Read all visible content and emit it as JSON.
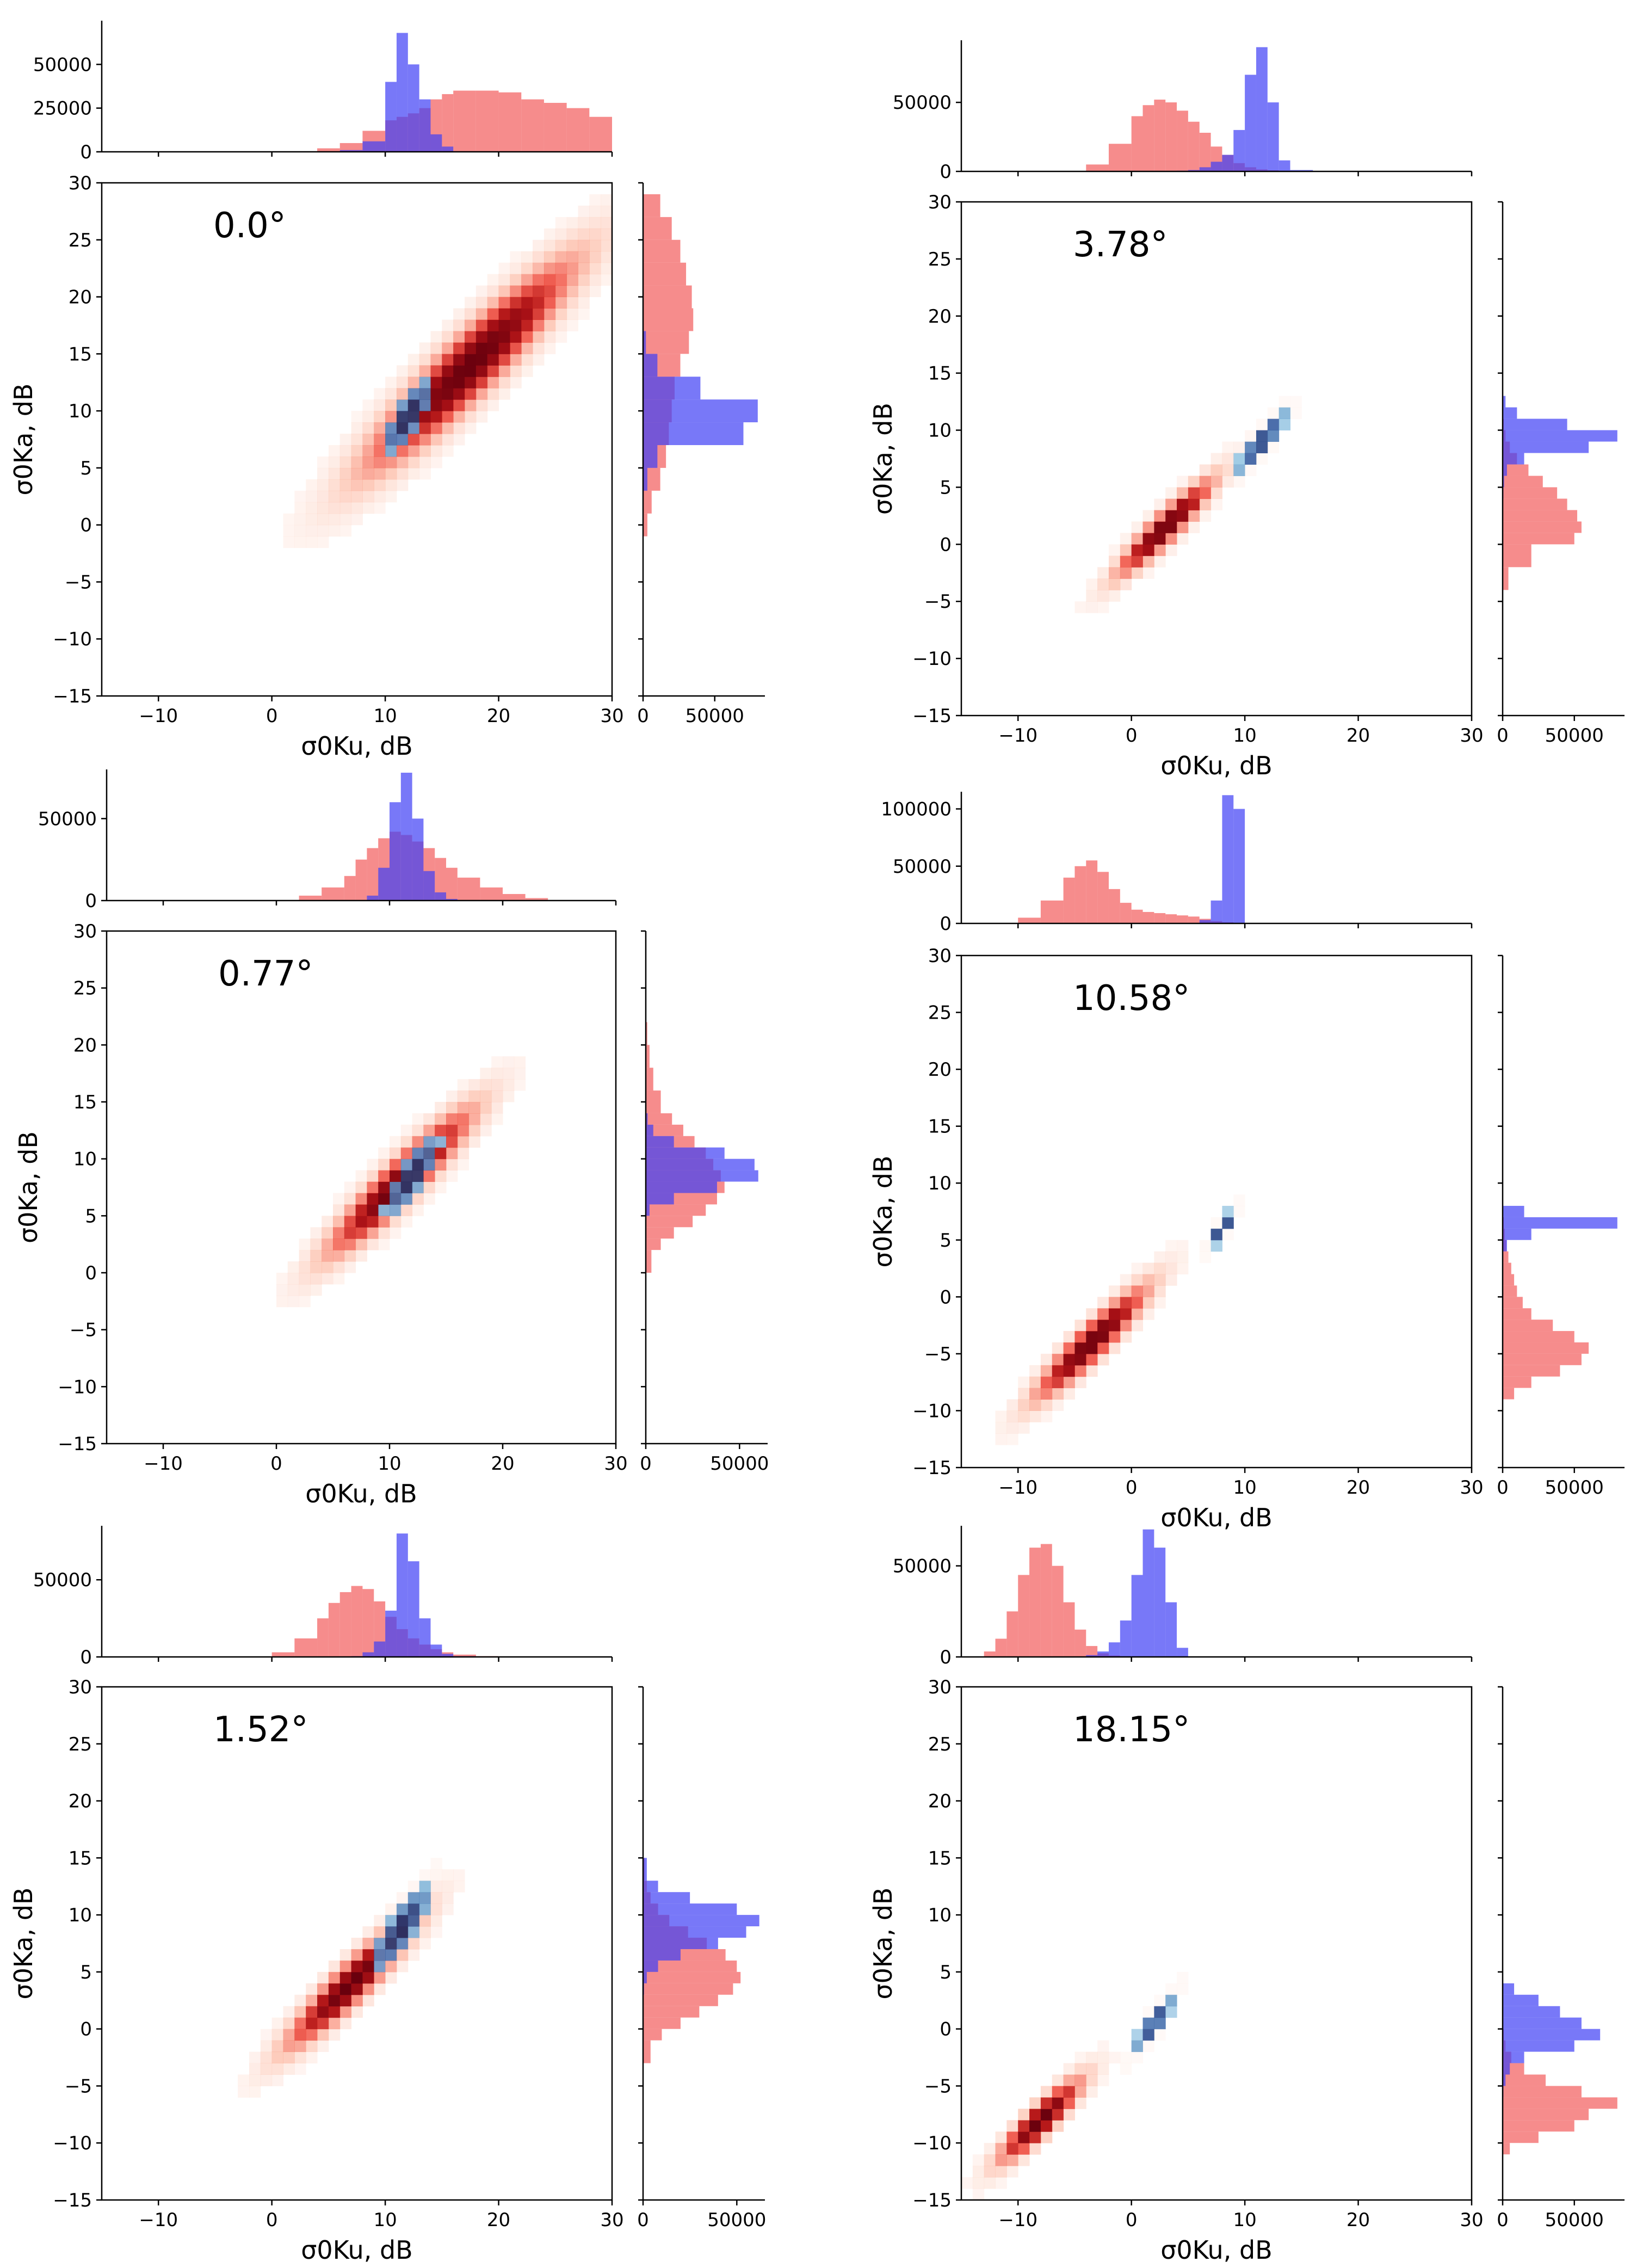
{
  "figure": {
    "colors": {
      "ku_ka_main": "#c8102e",
      "blue_hist": "#3f3ff5",
      "red_hist": "#f25b5b"
    },
    "hist_series": [
      "red",
      "blue"
    ]
  },
  "chart_data": [
    {
      "type": "heatmap",
      "angle_label": "0.0°",
      "xlabel": "σ0Ku, dB",
      "ylabel": "σ0Ka, dB",
      "xlim": [
        -15,
        30
      ],
      "ylim": [
        -15,
        30
      ],
      "xticks": [
        "−10",
        "0",
        "10",
        "20",
        "30"
      ],
      "yticks": [
        "−15",
        "−10",
        "−5",
        "0",
        "5",
        "10",
        "15",
        "20",
        "25",
        "30"
      ],
      "top_hist_ticks": [
        "0",
        "25000",
        "50000"
      ],
      "top_hist_max": 75000,
      "right_hist_ticks": [
        "0",
        "50000"
      ],
      "right_hist_max": 85000,
      "red_cluster": {
        "cx": 17.5,
        "cy": 14,
        "sx": 6.5,
        "sy": 6.5,
        "rho": 0.93
      },
      "blue_cluster": {
        "cx": 12,
        "cy": 9.5,
        "sx": 1.5,
        "sy": 2.2,
        "rho": 0.8
      },
      "top_hist": {
        "bins": [
          4,
          6,
          8,
          10,
          11,
          12,
          13,
          14,
          15,
          16,
          18,
          20,
          22,
          24,
          26,
          28,
          30
        ],
        "red": [
          2000,
          5000,
          12000,
          18000,
          20000,
          22000,
          25000,
          30000,
          33000,
          35000,
          35000,
          34000,
          30000,
          28000,
          25000,
          20000
        ],
        "blue": [
          0,
          1000,
          6000,
          40000,
          68000,
          50000,
          30000,
          10000,
          3000,
          0,
          0,
          0,
          0,
          0,
          0,
          0
        ]
      },
      "right_hist": {
        "bins": [
          -1,
          1,
          3,
          5,
          7,
          9,
          11,
          13,
          15,
          17,
          19,
          21,
          23,
          25,
          27,
          29
        ],
        "red": [
          3000,
          6000,
          12000,
          16000,
          18000,
          20000,
          22000,
          26000,
          32000,
          35000,
          34000,
          30000,
          26000,
          20000,
          12000
        ],
        "blue": [
          0,
          0,
          3000,
          10000,
          70000,
          80000,
          40000,
          10000,
          2000,
          0,
          0,
          0,
          0,
          0,
          0
        ]
      }
    },
    {
      "type": "heatmap",
      "angle_label": "3.78°",
      "xlabel": "σ0Ku, dB",
      "ylabel": "σ0Ka, dB",
      "xlim": [
        -15,
        30
      ],
      "ylim": [
        -15,
        30
      ],
      "xticks": [
        "−10",
        "0",
        "10",
        "20",
        "30"
      ],
      "yticks": [
        "−15",
        "−10",
        "−5",
        "0",
        "5",
        "10",
        "15",
        "20",
        "25",
        "30"
      ],
      "top_hist_ticks": [
        "0",
        "50000"
      ],
      "top_hist_max": 95000,
      "right_hist_ticks": [
        "0",
        "50000"
      ],
      "right_hist_max": 85000,
      "red_cluster": {
        "cx": 3,
        "cy": 1.5,
        "sx": 3,
        "sy": 3,
        "rho": 0.93
      },
      "blue_cluster": {
        "cx": 11.5,
        "cy": 9,
        "sx": 1.6,
        "sy": 2,
        "rho": 0.9
      },
      "top_hist": {
        "bins": [
          -4,
          -2,
          0,
          1,
          2,
          3,
          4,
          5,
          6,
          7,
          8,
          9,
          10,
          11,
          12,
          13,
          14,
          16
        ],
        "red": [
          5000,
          20000,
          40000,
          48000,
          52000,
          50000,
          44000,
          36000,
          28000,
          18000,
          12000,
          6000,
          3000,
          1500,
          800,
          300,
          100
        ],
        "blue": [
          0,
          0,
          0,
          0,
          0,
          0,
          500,
          1000,
          3000,
          7000,
          12000,
          30000,
          70000,
          90000,
          50000,
          8000,
          1000
        ]
      },
      "right_hist": {
        "bins": [
          -4,
          -2,
          0,
          1,
          2,
          3,
          4,
          5,
          6,
          7,
          8,
          9,
          10,
          11,
          12,
          13,
          14
        ],
        "red": [
          4000,
          20000,
          50000,
          55000,
          52000,
          45000,
          38000,
          28000,
          18000,
          10000,
          5000,
          2000,
          800,
          300,
          100,
          0
        ],
        "blue": [
          0,
          0,
          0,
          0,
          0,
          0,
          500,
          1000,
          3000,
          15000,
          60000,
          80000,
          45000,
          10000,
          2000,
          0
        ]
      }
    },
    {
      "type": "heatmap",
      "angle_label": "0.77°",
      "xlabel": "σ0Ku, dB",
      "ylabel": "σ0Ka, dB",
      "xlim": [
        -15,
        30
      ],
      "ylim": [
        -15,
        30
      ],
      "xticks": [
        "−10",
        "0",
        "10",
        "20",
        "30"
      ],
      "yticks": [
        "−15",
        "−10",
        "−5",
        "0",
        "5",
        "10",
        "15",
        "20",
        "25",
        "30"
      ],
      "top_hist_ticks": [
        "0",
        "50000"
      ],
      "top_hist_max": 80000,
      "right_hist_ticks": [
        "0",
        "50000"
      ],
      "right_hist_max": 65000,
      "red_cluster": {
        "cx": 11,
        "cy": 8,
        "sx": 4.5,
        "sy": 4.5,
        "rho": 0.93
      },
      "blue_cluster": {
        "cx": 12,
        "cy": 8.5,
        "sx": 1.6,
        "sy": 2.3,
        "rho": 0.85
      },
      "top_hist": {
        "bins": [
          2,
          4,
          6,
          7,
          8,
          9,
          10,
          11,
          12,
          13,
          14,
          15,
          16,
          18,
          20,
          22,
          24
        ],
        "red": [
          3000,
          8000,
          15000,
          25000,
          32000,
          38000,
          42000,
          40000,
          36000,
          32000,
          26000,
          20000,
          14000,
          8000,
          4000,
          1500
        ],
        "blue": [
          0,
          0,
          0,
          0,
          3000,
          20000,
          60000,
          78000,
          50000,
          18000,
          5000,
          1000,
          0,
          0,
          0,
          0
        ]
      },
      "right_hist": {
        "bins": [
          0,
          2,
          3,
          4,
          5,
          6,
          7,
          8,
          9,
          10,
          11,
          12,
          13,
          14,
          16,
          18,
          20,
          22
        ],
        "red": [
          3000,
          8000,
          15000,
          25000,
          32000,
          38000,
          42000,
          40000,
          36000,
          32000,
          26000,
          20000,
          14000,
          8000,
          4000,
          2000,
          800
        ],
        "blue": [
          0,
          0,
          0,
          0,
          2000,
          15000,
          38000,
          60000,
          58000,
          42000,
          15000,
          4000,
          1000,
          0,
          0,
          0,
          0
        ]
      }
    },
    {
      "type": "heatmap",
      "angle_label": "10.58°",
      "xlabel": "σ0Ku, dB",
      "ylabel": "σ0Ka, dB",
      "xlim": [
        -15,
        30
      ],
      "ylim": [
        -15,
        30
      ],
      "xticks": [
        "−10",
        "0",
        "10",
        "20",
        "30"
      ],
      "yticks": [
        "−15",
        "−10",
        "−5",
        "0",
        "5",
        "10",
        "15",
        "20",
        "25",
        "30"
      ],
      "top_hist_ticks": [
        "0",
        "50000",
        "100000"
      ],
      "top_hist_max": 115000,
      "right_hist_ticks": [
        "0",
        "50000"
      ],
      "right_hist_max": 85000,
      "red_cluster": {
        "cx": -3.5,
        "cy": -4,
        "sx": 3.5,
        "sy": 3.5,
        "rho": 0.93
      },
      "blue_cluster": {
        "cx": 8,
        "cy": 6,
        "sx": 0.9,
        "sy": 1.2,
        "rho": 0.85
      },
      "top_hist": {
        "bins": [
          -10,
          -8,
          -6,
          -5,
          -4,
          -3,
          -2,
          -1,
          0,
          1,
          2,
          3,
          4,
          5,
          6,
          7,
          8,
          9,
          10
        ],
        "red": [
          5000,
          20000,
          40000,
          50000,
          55000,
          45000,
          30000,
          18000,
          12000,
          10000,
          9000,
          8000,
          7000,
          6000,
          4000,
          2000,
          1000,
          500
        ],
        "blue": [
          0,
          0,
          0,
          0,
          0,
          0,
          0,
          0,
          0,
          0,
          0,
          0,
          0,
          0,
          3000,
          20000,
          112000,
          100000
        ]
      },
      "right_hist": {
        "bins": [
          -9,
          -8,
          -7,
          -6,
          -5,
          -4,
          -3,
          -2,
          -1,
          0,
          1,
          2,
          3,
          4,
          5,
          6,
          7,
          8
        ],
        "red": [
          8000,
          20000,
          40000,
          55000,
          60000,
          50000,
          35000,
          20000,
          14000,
          10000,
          8000,
          6000,
          4000,
          2500,
          1500,
          800,
          300
        ],
        "blue": [
          0,
          0,
          0,
          0,
          0,
          0,
          0,
          0,
          0,
          0,
          0,
          0,
          0,
          3000,
          20000,
          80000,
          15000
        ]
      }
    },
    {
      "type": "heatmap",
      "angle_label": "1.52°",
      "xlabel": "σ0Ku, dB",
      "ylabel": "σ0Ka, dB",
      "xlim": [
        -15,
        30
      ],
      "ylim": [
        -15,
        30
      ],
      "xticks": [
        "−10",
        "0",
        "10",
        "20",
        "30"
      ],
      "yticks": [
        "−15",
        "−10",
        "−5",
        "0",
        "5",
        "10",
        "15",
        "20",
        "25",
        "30"
      ],
      "top_hist_ticks": [
        "0",
        "50000"
      ],
      "top_hist_max": 85000,
      "right_hist_ticks": [
        "0",
        "50000"
      ],
      "right_hist_max": 65000,
      "red_cluster": {
        "cx": 7,
        "cy": 4,
        "sx": 4,
        "sy": 4,
        "rho": 0.93
      },
      "blue_cluster": {
        "cx": 11.5,
        "cy": 9,
        "sx": 1.8,
        "sy": 2.6,
        "rho": 0.85
      },
      "top_hist": {
        "bins": [
          0,
          2,
          4,
          5,
          6,
          7,
          8,
          9,
          10,
          11,
          12,
          13,
          14,
          15,
          16,
          18,
          20
        ],
        "red": [
          3000,
          12000,
          25000,
          35000,
          42000,
          46000,
          44000,
          36000,
          26000,
          18000,
          12000,
          8000,
          5000,
          3000,
          1500,
          500
        ],
        "blue": [
          0,
          0,
          0,
          0,
          0,
          500,
          3000,
          10000,
          30000,
          80000,
          62000,
          25000,
          8000,
          2000,
          500,
          0
        ]
      },
      "right_hist": {
        "bins": [
          -3,
          -1,
          0,
          1,
          2,
          3,
          4,
          5,
          6,
          7,
          8,
          9,
          10,
          11,
          12,
          13,
          15,
          17
        ],
        "red": [
          4000,
          10000,
          20000,
          30000,
          40000,
          48000,
          52000,
          50000,
          44000,
          34000,
          24000,
          14000,
          8000,
          4000,
          2000,
          800,
          200
        ],
        "blue": [
          0,
          0,
          0,
          0,
          0,
          500,
          2000,
          8000,
          20000,
          40000,
          55000,
          62000,
          50000,
          25000,
          8000,
          2000,
          0
        ]
      }
    },
    {
      "type": "heatmap",
      "angle_label": "18.15°",
      "xlabel": "σ0Ku, dB",
      "ylabel": "σ0Ka, dB",
      "xlim": [
        -15,
        30
      ],
      "ylim": [
        -15,
        30
      ],
      "xticks": [
        "−10",
        "0",
        "10",
        "20",
        "30"
      ],
      "yticks": [
        "−15",
        "−10",
        "−5",
        "0",
        "5",
        "10",
        "15",
        "20",
        "25",
        "30"
      ],
      "top_hist_ticks": [
        "0",
        "50000"
      ],
      "top_hist_max": 72000,
      "right_hist_ticks": [
        "0",
        "50000"
      ],
      "right_hist_max": 85000,
      "red_cluster": {
        "cx": -8,
        "cy": -8,
        "sx": 2.6,
        "sy": 2.6,
        "rho": 0.9
      },
      "blue_cluster": {
        "cx": 2,
        "cy": 0.5,
        "sx": 1.3,
        "sy": 1.8,
        "rho": 0.9
      },
      "top_hist": {
        "bins": [
          -13,
          -12,
          -11,
          -10,
          -9,
          -8,
          -7,
          -6,
          -5,
          -4,
          -3,
          -2,
          -1,
          0,
          1,
          2,
          3,
          4,
          5
        ],
        "red": [
          3000,
          10000,
          25000,
          45000,
          60000,
          62000,
          50000,
          30000,
          15000,
          6000,
          2000,
          800,
          300,
          100,
          0,
          0,
          0,
          0
        ],
        "blue": [
          0,
          0,
          0,
          0,
          0,
          0,
          0,
          0,
          0,
          1000,
          3000,
          8000,
          20000,
          45000,
          70000,
          60000,
          30000,
          5000
        ]
      },
      "right_hist": {
        "bins": [
          -11,
          -10,
          -9,
          -8,
          -7,
          -6,
          -5,
          -4,
          -3,
          -2,
          -1,
          0,
          1,
          2,
          3,
          4
        ],
        "red": [
          5000,
          25000,
          50000,
          60000,
          80000,
          55000,
          30000,
          15000,
          6000,
          2000,
          800,
          300,
          100,
          0,
          0
        ],
        "blue": [
          0,
          0,
          0,
          0,
          0,
          500,
          2000,
          5000,
          15000,
          50000,
          68000,
          55000,
          40000,
          25000,
          8000
        ]
      }
    }
  ]
}
